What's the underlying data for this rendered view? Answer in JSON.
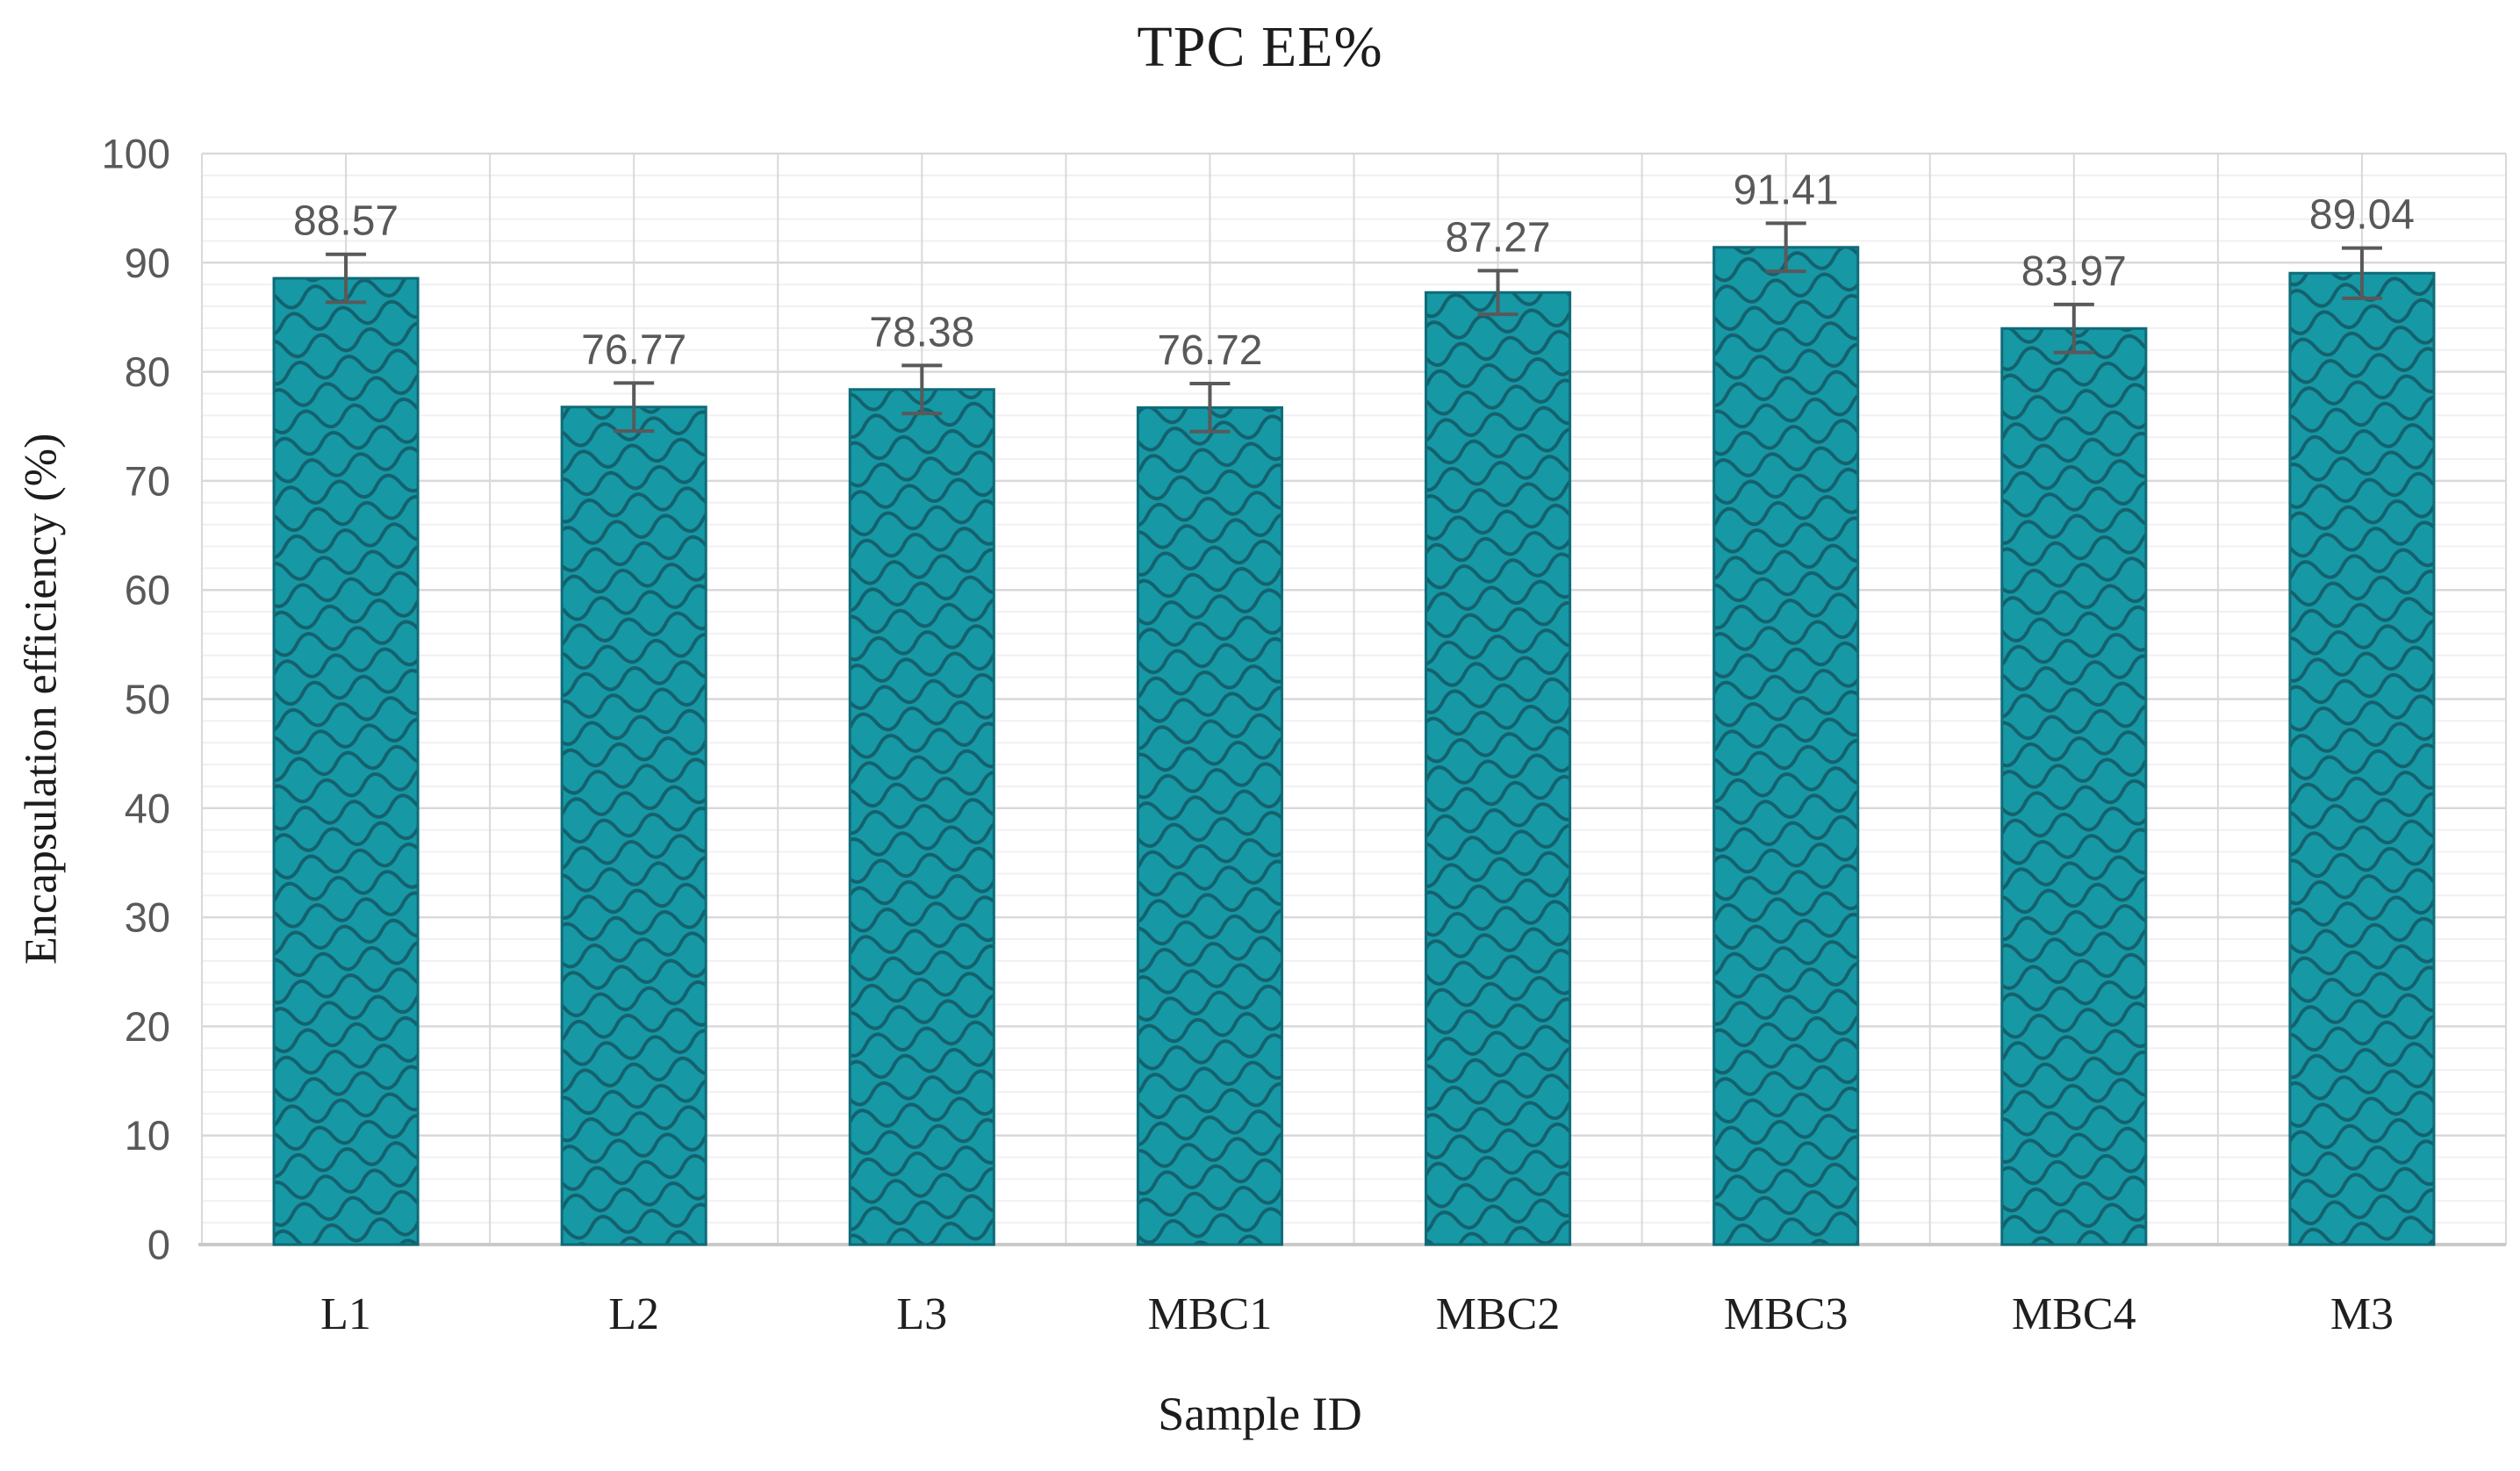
{
  "chart_data": {
    "type": "bar",
    "title": "TPC EE%",
    "xlabel": "Sample ID",
    "ylabel": "Encapsulation efficiency (%)",
    "categories": [
      "L1",
      "L2",
      "L3",
      "MBC1",
      "MBC2",
      "MBC3",
      "MBC4",
      "M3"
    ],
    "values": [
      88.57,
      76.77,
      78.38,
      76.72,
      87.27,
      91.41,
      83.97,
      89.04
    ],
    "data_labels": [
      "88.57",
      "76.77",
      "78.38",
      "76.72",
      "87.27",
      "91.41",
      "83.97",
      "89.04"
    ],
    "error_bars": [
      2.2,
      2.2,
      2.2,
      2.2,
      2.0,
      2.2,
      2.2,
      2.3
    ],
    "ylim": [
      0,
      100
    ],
    "y_major_step": 10,
    "y_minor_step": 2,
    "y_tick_labels": [
      "0",
      "10",
      "20",
      "30",
      "40",
      "50",
      "60",
      "70",
      "80",
      "90",
      "100"
    ],
    "grid": true,
    "legend_position": "none",
    "bar_color": "#1798A5",
    "bar_pattern_color": "#14616E",
    "bar_border_color": "#0F6B78",
    "error_bar_color": "#595959",
    "data_label_color": "#595959",
    "tick_label_color": "#595959",
    "category_label_color": "#1f1f1f",
    "gridline_major_color": "#D9D9D9",
    "gridline_minor_color": "#F0F0F0",
    "axis_line_color": "#C9C9C9"
  }
}
